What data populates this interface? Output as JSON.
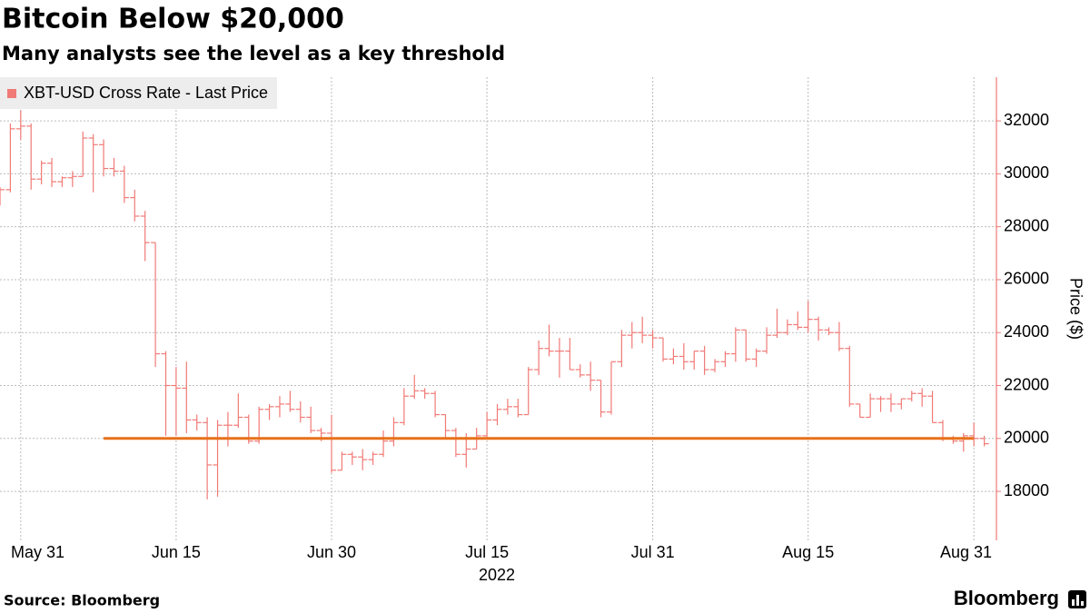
{
  "chart_data": {
    "type": "ohlc",
    "title": "Bitcoin Below $20,000",
    "subtitle": "Many analysts see the level as a key threshold",
    "y_label": "Price ($)",
    "x_sublabel": "2022",
    "source": "Source: Bloomberg",
    "brand": "Bloomberg",
    "grid": true,
    "y_axis_side": "right",
    "legend_position": "top-left",
    "xlim": [
      "2022-05-29",
      "2022-09-02"
    ],
    "ylim": [
      16150,
      33650
    ],
    "yticks": [
      18000,
      20000,
      22000,
      24000,
      26000,
      28000,
      30000,
      32000
    ],
    "xticks": [
      {
        "value": "2022-05-31",
        "label": "May 31"
      },
      {
        "value": "2022-06-15",
        "label": "Jun 15"
      },
      {
        "value": "2022-06-30",
        "label": "Jun 30"
      },
      {
        "value": "2022-07-15",
        "label": "Jul 15"
      },
      {
        "value": "2022-07-31",
        "label": "Jul 31"
      },
      {
        "value": "2022-08-15",
        "label": "Aug 15"
      },
      {
        "value": "2022-08-31",
        "label": "Aug 31"
      }
    ],
    "reference_line": {
      "value": 20000,
      "color": "#e8701a",
      "start": "2022-06-08",
      "end": "2022-08-31"
    },
    "x": [
      "2022-05-29",
      "2022-05-30",
      "2022-05-31",
      "2022-06-01",
      "2022-06-02",
      "2022-06-03",
      "2022-06-04",
      "2022-06-05",
      "2022-06-06",
      "2022-06-07",
      "2022-06-08",
      "2022-06-09",
      "2022-06-10",
      "2022-06-11",
      "2022-06-12",
      "2022-06-13",
      "2022-06-14",
      "2022-06-15",
      "2022-06-16",
      "2022-06-17",
      "2022-06-18",
      "2022-06-19",
      "2022-06-20",
      "2022-06-21",
      "2022-06-22",
      "2022-06-23",
      "2022-06-24",
      "2022-06-25",
      "2022-06-26",
      "2022-06-27",
      "2022-06-28",
      "2022-06-29",
      "2022-06-30",
      "2022-07-01",
      "2022-07-02",
      "2022-07-03",
      "2022-07-04",
      "2022-07-05",
      "2022-07-06",
      "2022-07-07",
      "2022-07-08",
      "2022-07-09",
      "2022-07-10",
      "2022-07-11",
      "2022-07-12",
      "2022-07-13",
      "2022-07-14",
      "2022-07-15",
      "2022-07-16",
      "2022-07-17",
      "2022-07-18",
      "2022-07-19",
      "2022-07-20",
      "2022-07-21",
      "2022-07-22",
      "2022-07-23",
      "2022-07-24",
      "2022-07-25",
      "2022-07-26",
      "2022-07-27",
      "2022-07-28",
      "2022-07-29",
      "2022-07-30",
      "2022-07-31",
      "2022-08-01",
      "2022-08-02",
      "2022-08-03",
      "2022-08-04",
      "2022-08-05",
      "2022-08-06",
      "2022-08-07",
      "2022-08-08",
      "2022-08-09",
      "2022-08-10",
      "2022-08-11",
      "2022-08-12",
      "2022-08-13",
      "2022-08-14",
      "2022-08-15",
      "2022-08-16",
      "2022-08-17",
      "2022-08-18",
      "2022-08-19",
      "2022-08-20",
      "2022-08-21",
      "2022-08-22",
      "2022-08-23",
      "2022-08-24",
      "2022-08-25",
      "2022-08-26",
      "2022-08-27",
      "2022-08-28",
      "2022-08-29",
      "2022-08-30",
      "2022-08-31",
      "2022-09-01"
    ],
    "series": [
      {
        "name": "XBT-USD Cross Rate - Last Price",
        "color": "#f07a76",
        "open": [
          29200,
          29400,
          31700,
          31800,
          29800,
          30400,
          29700,
          29850,
          29900,
          31350,
          31100,
          30200,
          30100,
          29100,
          28400,
          27400,
          23200,
          22000,
          21900,
          20700,
          20600,
          19000,
          20500,
          20500,
          20800,
          19900,
          21100,
          21200,
          21300,
          21100,
          20800,
          20300,
          20200,
          18800,
          19400,
          19300,
          19200,
          19400,
          19900,
          20600,
          21600,
          21800,
          21700,
          20900,
          20300,
          19400,
          19600,
          20100,
          20700,
          21100,
          21200,
          20900,
          22600,
          23400,
          23300,
          23300,
          22600,
          22400,
          22200,
          21000,
          22900,
          23900,
          24000,
          23900,
          23800,
          23000,
          23100,
          22900,
          23300,
          22600,
          22900,
          23200,
          24100,
          23000,
          23300,
          23900,
          24000,
          24300,
          24200,
          24500,
          24100,
          24000,
          23400,
          21300,
          20800,
          21500,
          21500,
          21300,
          21500,
          21700,
          21600,
          20600,
          20000,
          19900,
          20100,
          20000
        ],
        "high": [
          29500,
          31900,
          32400,
          31900,
          30500,
          30600,
          29900,
          30100,
          31600,
          31500,
          31300,
          30600,
          30300,
          29400,
          28600,
          27400,
          23300,
          22700,
          22900,
          20900,
          20800,
          20700,
          21000,
          21700,
          20900,
          21200,
          21300,
          21600,
          21800,
          21400,
          21200,
          20400,
          20900,
          19500,
          19500,
          19600,
          19500,
          20300,
          20800,
          21900,
          22400,
          21900,
          21800,
          20900,
          20400,
          20200,
          20400,
          21000,
          21300,
          21500,
          21500,
          22700,
          23700,
          24300,
          23800,
          23800,
          22800,
          22900,
          22200,
          22900,
          24100,
          24400,
          24600,
          24100,
          23800,
          23400,
          23600,
          23300,
          23500,
          23000,
          23300,
          24200,
          24100,
          23400,
          24200,
          24900,
          24500,
          24800,
          25200,
          24600,
          24200,
          24400,
          23500,
          21300,
          21700,
          21600,
          21700,
          21500,
          21800,
          21900,
          21800,
          20700,
          20100,
          20200,
          20600,
          20100
        ],
        "low": [
          28800,
          29300,
          31300,
          29400,
          29600,
          29500,
          29500,
          29500,
          29900,
          29300,
          29900,
          29900,
          28900,
          28200,
          26700,
          22700,
          20100,
          20100,
          20200,
          20300,
          17700,
          17800,
          19700,
          20400,
          19800,
          19800,
          20700,
          20800,
          21000,
          20600,
          20200,
          19900,
          18700,
          18800,
          19000,
          18800,
          19000,
          19300,
          19700,
          20500,
          21500,
          21500,
          20800,
          20000,
          19300,
          18900,
          19600,
          20000,
          20500,
          20900,
          20800,
          20900,
          22400,
          23100,
          22300,
          22600,
          22300,
          21800,
          20800,
          20900,
          22700,
          23400,
          23600,
          23400,
          22900,
          22800,
          22600,
          22600,
          22400,
          22500,
          22700,
          22900,
          22900,
          22700,
          23200,
          23800,
          23900,
          24100,
          24000,
          23700,
          23900,
          23300,
          21200,
          20800,
          20800,
          21000,
          21000,
          21100,
          21400,
          21200,
          20600,
          19900,
          19800,
          19500,
          19700,
          19700
        ],
        "close": [
          29400,
          31700,
          31800,
          29800,
          30400,
          29700,
          29850,
          29900,
          31350,
          31100,
          30200,
          30100,
          29100,
          28400,
          27400,
          23200,
          22000,
          21900,
          20700,
          20600,
          19000,
          20500,
          20500,
          20800,
          19900,
          21100,
          21200,
          21300,
          21100,
          20800,
          20300,
          20200,
          18800,
          19400,
          19300,
          19200,
          19400,
          19900,
          20600,
          21600,
          21800,
          21700,
          20900,
          20300,
          19400,
          19600,
          20100,
          20700,
          21100,
          21200,
          20900,
          22600,
          23400,
          23300,
          23300,
          22600,
          22400,
          22200,
          21000,
          22900,
          23900,
          24000,
          23900,
          23800,
          23000,
          23100,
          22900,
          23300,
          22600,
          22900,
          23200,
          24100,
          23000,
          23300,
          23900,
          24000,
          24300,
          24200,
          24500,
          24100,
          24000,
          23400,
          21300,
          20800,
          21500,
          21500,
          21300,
          21500,
          21700,
          21600,
          20600,
          20000,
          19900,
          20100,
          20000,
          19800
        ]
      }
    ]
  }
}
